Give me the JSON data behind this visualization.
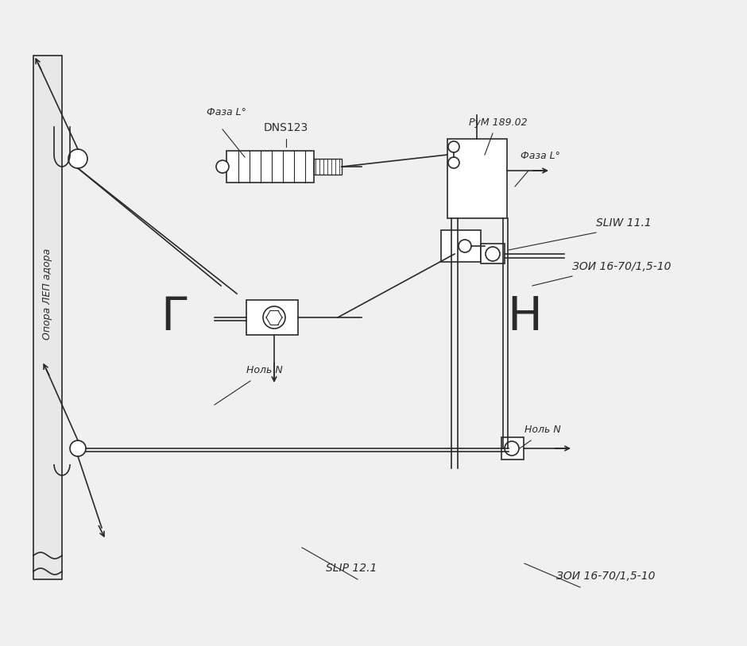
{
  "bg_color": "#f0f0f0",
  "line_color": "#2a2a2a",
  "title": "",
  "labels": {
    "dns123": "DNS123",
    "faza_l_top": "Фаза L°",
    "rum": "РуМ 189.02",
    "faza_l_mid": "Фаза L°",
    "sliw": "SLIW 11.1",
    "zoi_top": "ЗОИ 16-70/1,5-10",
    "nol_n_top": "Ноль N",
    "nol_n_bot": "Ноль N",
    "zoi_bot": "ЗОИ 16-70/1,5-10",
    "slip": "SLIP 12.1",
    "opora": "Опора ЛЕП адора",
    "G": "Г",
    "N": "Н"
  }
}
